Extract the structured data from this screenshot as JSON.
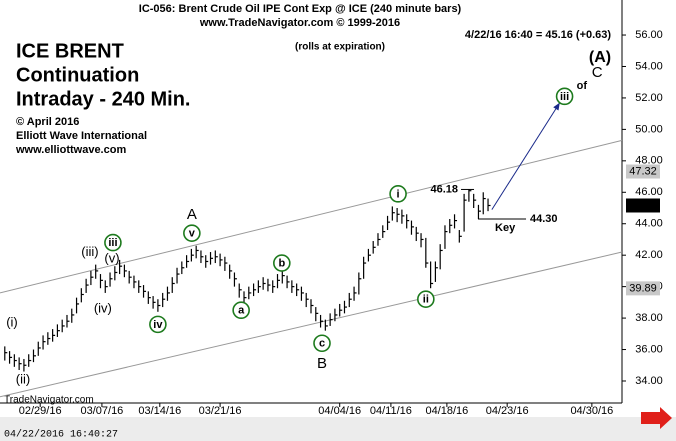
{
  "chart_data": {
    "type": "ohlc",
    "title": "IC-056:  Brent Crude Oil IPE Cont Exp @ ICE  (240 minute bars)",
    "subtitle": "www.TradeNavigator.com © 1999-2016",
    "note": "(rolls at expiration)",
    "last_quote": "4/22/16 16:40 = 45.16 (+0.63)",
    "heading": [
      "ICE BRENT",
      "Continuation",
      "Intraday - 240 Min."
    ],
    "credits": [
      "© April 2016",
      "Elliott Wave International",
      "www.elliottwave.com"
    ],
    "watermark": "TradeNavigator.com",
    "timestamp": "04/22/2016 16:40:27",
    "xlim": [
      -1,
      129
    ],
    "ylim": [
      32.6,
      56.32
    ],
    "xticks": [
      {
        "value": 7.4,
        "label": "02/29/16"
      },
      {
        "value": 20.3,
        "label": "03/07/16"
      },
      {
        "value": 32.4,
        "label": "03/14/16"
      },
      {
        "value": 45,
        "label": "03/21/16"
      },
      {
        "value": 70,
        "label": "04/04/16"
      },
      {
        "value": 80.7,
        "label": "04/11/16"
      },
      {
        "value": 92.4,
        "label": "04/18/16"
      },
      {
        "value": 105,
        "label": "04/23/16"
      },
      {
        "value": 122.7,
        "label": "04/30/16"
      }
    ],
    "yticks": [
      {
        "value": 34,
        "label": "34.00"
      },
      {
        "value": 36,
        "label": "36.00"
      },
      {
        "value": 38,
        "label": "38.00"
      },
      {
        "value": 40,
        "label": "40.00"
      },
      {
        "value": 42,
        "label": "42.00"
      },
      {
        "value": 44,
        "label": "44.00"
      },
      {
        "value": 46,
        "label": "46.00"
      },
      {
        "value": 48,
        "label": "48.00"
      },
      {
        "value": 50,
        "label": "50.00"
      },
      {
        "value": 52,
        "label": "52.00"
      },
      {
        "value": 54,
        "label": "54.00"
      },
      {
        "value": 56,
        "label": "56.00"
      }
    ],
    "axis_markers": [
      47.32,
      45.16,
      39.89
    ],
    "color": "#000000",
    "high": [
      36.2,
      35.9,
      35.7,
      35.5,
      35.4,
      35.7,
      36.0,
      36.5,
      36.9,
      37.1,
      37.3,
      37.6,
      37.9,
      38.2,
      38.6,
      39.3,
      39.9,
      40.5,
      41.0,
      41.4,
      40.8,
      40.4,
      40.9,
      41.3,
      41.7,
      41.4,
      41.0,
      40.7,
      40.4,
      40.1,
      39.7,
      39.4,
      39.2,
      39.6,
      40.0,
      40.6,
      41.2,
      41.6,
      42.0,
      42.4,
      42.6,
      42.3,
      42.0,
      42.2,
      42.3,
      42.1,
      41.9,
      41.4,
      40.9,
      40.2,
      39.7,
      40.0,
      40.2,
      40.4,
      40.6,
      40.5,
      40.4,
      40.8,
      41.1,
      40.7,
      40.4,
      40.2,
      40.0,
      39.6,
      39.2,
      38.7,
      38.2,
      37.9,
      38.3,
      38.6,
      38.9,
      39.1,
      39.6,
      40.0,
      40.9,
      41.9,
      42.4,
      42.9,
      43.4,
      43.9,
      44.5,
      45.1,
      45.0,
      44.9,
      44.6,
      44.2,
      43.8,
      43.4,
      43.1,
      41.6,
      41.6,
      42.7,
      43.9,
      44.3,
      44.6,
      43.6,
      45.9,
      46.18,
      45.9,
      45.2,
      46.0,
      45.6
    ],
    "low": [
      35.3,
      35.1,
      34.9,
      34.7,
      34.6,
      34.9,
      35.2,
      35.6,
      36.0,
      36.3,
      36.5,
      36.8,
      37.1,
      37.4,
      37.7,
      38.3,
      39.0,
      39.6,
      40.1,
      40.5,
      39.9,
      39.6,
      40.0,
      40.4,
      40.8,
      40.6,
      40.2,
      39.9,
      39.6,
      39.3,
      38.9,
      38.6,
      38.4,
      38.7,
      39.1,
      39.6,
      40.2,
      40.8,
      41.2,
      41.6,
      41.8,
      41.5,
      41.2,
      41.4,
      41.5,
      41.3,
      41.0,
      40.5,
      40.0,
      39.3,
      38.9,
      39.2,
      39.4,
      39.6,
      39.8,
      39.7,
      39.6,
      39.9,
      40.2,
      39.9,
      39.6,
      39.4,
      39.1,
      38.7,
      38.3,
      37.8,
      37.4,
      37.2,
      37.5,
      37.8,
      38.1,
      38.3,
      38.7,
      39.1,
      39.5,
      40.5,
      41.6,
      42.1,
      42.6,
      43.1,
      43.6,
      44.2,
      44.1,
      44.0,
      43.7,
      43.3,
      42.9,
      42.5,
      41.2,
      39.9,
      40.3,
      41.1,
      42.4,
      43.4,
      43.7,
      42.8,
      43.5,
      45.4,
      45.0,
      44.3,
      44.6,
      44.8
    ],
    "close": [
      35.8,
      35.5,
      35.3,
      35.1,
      35.0,
      35.3,
      35.6,
      36.1,
      36.5,
      36.7,
      36.9,
      37.2,
      37.5,
      37.8,
      38.2,
      38.9,
      39.5,
      40.1,
      40.6,
      41.0,
      40.4,
      40.0,
      40.5,
      40.9,
      41.3,
      41.0,
      40.6,
      40.3,
      40.0,
      39.7,
      39.3,
      39.0,
      38.8,
      39.2,
      39.6,
      40.2,
      40.8,
      41.2,
      41.6,
      42.0,
      42.3,
      41.9,
      41.6,
      41.8,
      41.9,
      41.7,
      41.5,
      41.0,
      40.5,
      39.8,
      39.3,
      39.6,
      39.8,
      40.0,
      40.2,
      40.1,
      40.0,
      40.4,
      40.7,
      40.3,
      40.0,
      39.8,
      39.6,
      39.2,
      38.8,
      38.3,
      37.8,
      37.5,
      37.9,
      38.2,
      38.5,
      38.7,
      39.2,
      39.6,
      40.5,
      41.5,
      42.0,
      42.5,
      43.0,
      43.5,
      44.1,
      44.7,
      44.6,
      44.5,
      44.2,
      43.8,
      43.4,
      43.0,
      41.5,
      40.2,
      41.2,
      42.3,
      43.5,
      43.9,
      44.2,
      43.2,
      45.5,
      46.1,
      45.5,
      44.8,
      45.6,
      45.16
    ],
    "channel": [
      {
        "x": [
          -1,
          129
        ],
        "y": [
          39.6,
          49.3
        ]
      },
      {
        "x": [
          -1,
          129
        ],
        "y": [
          33.0,
          42.2
        ]
      }
    ],
    "arrow": {
      "x": [
        101.8,
        116.0
      ],
      "y": [
        44.9,
        51.7
      ]
    },
    "peak_label": 46.18,
    "key_label": "Key",
    "key_level": {
      "value": 44.3,
      "label": "44.30"
    },
    "waves": [
      {
        "label": "(i)",
        "x": 1.5,
        "y": 37.7,
        "style": "minor"
      },
      {
        "label": "(ii)",
        "x": 3.8,
        "y": 34.1,
        "style": "minor"
      },
      {
        "label": "(iii)",
        "x": 17.8,
        "y": 42.2,
        "style": "minor"
      },
      {
        "label": "iii",
        "x": 22.6,
        "y": 42.8,
        "style": "circle"
      },
      {
        "label": "(v)",
        "x": 22.4,
        "y": 41.8,
        "style": "minor"
      },
      {
        "label": "(iv)",
        "x": 20.5,
        "y": 38.6,
        "style": "minor"
      },
      {
        "label": "iv",
        "x": 32,
        "y": 37.6,
        "style": "circle"
      },
      {
        "label": "A",
        "x": 39.1,
        "y": 44.6,
        "style": "major"
      },
      {
        "label": "v",
        "x": 39.1,
        "y": 43.4,
        "style": "circle"
      },
      {
        "label": "a",
        "x": 49.4,
        "y": 38.5,
        "style": "circle"
      },
      {
        "label": "b",
        "x": 57.9,
        "y": 41.5,
        "style": "circle"
      },
      {
        "label": "c",
        "x": 66.3,
        "y": 36.4,
        "style": "circle"
      },
      {
        "label": "B",
        "x": 66.3,
        "y": 35.1,
        "style": "major"
      },
      {
        "label": "i",
        "x": 82.2,
        "y": 45.9,
        "style": "circle"
      },
      {
        "label": "ii",
        "x": 88,
        "y": 39.2,
        "style": "circle"
      },
      {
        "label": "iii",
        "x": 117,
        "y": 52.1,
        "style": "circle"
      },
      {
        "label": "of",
        "x": 120.6,
        "y": 52.8,
        "style": "plain"
      },
      {
        "label": "C",
        "x": 123.8,
        "y": 53.6,
        "style": "major"
      },
      {
        "label": "(A)",
        "x": 124.4,
        "y": 54.6,
        "style": "top"
      }
    ]
  }
}
